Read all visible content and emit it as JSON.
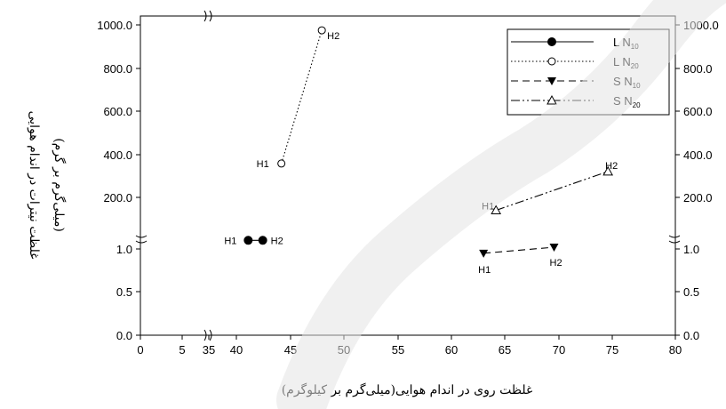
{
  "chart_data": {
    "type": "scatter",
    "xlabel": "غلظت روی در اندام هوایی(میلی‌گرم بر کیلوگرم)",
    "ylabel_line1": "غلظت نیترات در اندام هوایی",
    "ylabel_line2": "(میلی‌گرم بر گرم)",
    "x_ticks": [
      "0",
      "5",
      "35",
      "40",
      "45",
      "50",
      "55",
      "60",
      "65",
      "70",
      "75",
      "80"
    ],
    "y_ticks_lower": [
      "0.0",
      "0.5",
      "1.0"
    ],
    "y_ticks_upper": [
      "200.0",
      "400.0",
      "600.0",
      "800.0",
      "1000.0"
    ],
    "x_break": [
      5,
      35
    ],
    "y_break": [
      1.0,
      200.0
    ],
    "grid": false,
    "legend_position": "top-right",
    "series": [
      {
        "name": "L N",
        "sub": "10",
        "style": "solid",
        "marker": "filled-circle",
        "points": [
          {
            "label": "H1",
            "x": 38.8,
            "y": 1.1
          },
          {
            "label": "H2",
            "x": 40.2,
            "y": 1.1
          }
        ]
      },
      {
        "name": "L N",
        "sub": "20",
        "style": "dotted",
        "marker": "open-circle",
        "points": [
          {
            "label": "H1",
            "x": 42.0,
            "y": 357
          },
          {
            "label": "H2",
            "x": 45.9,
            "y": 975
          }
        ]
      },
      {
        "name": "S N",
        "sub": "10",
        "style": "dashed",
        "marker": "filled-triangle-down",
        "points": [
          {
            "label": "H1",
            "x": 61.5,
            "y": 0.95
          },
          {
            "label": "H2",
            "x": 68.3,
            "y": 1.02
          }
        ]
      },
      {
        "name": "S N",
        "sub": "20",
        "style": "dash-dot-dot",
        "marker": "open-triangle-up",
        "points": [
          {
            "label": "H1",
            "x": 62.7,
            "y": 140
          },
          {
            "label": "H2",
            "x": 73.5,
            "y": 320
          }
        ]
      }
    ]
  }
}
